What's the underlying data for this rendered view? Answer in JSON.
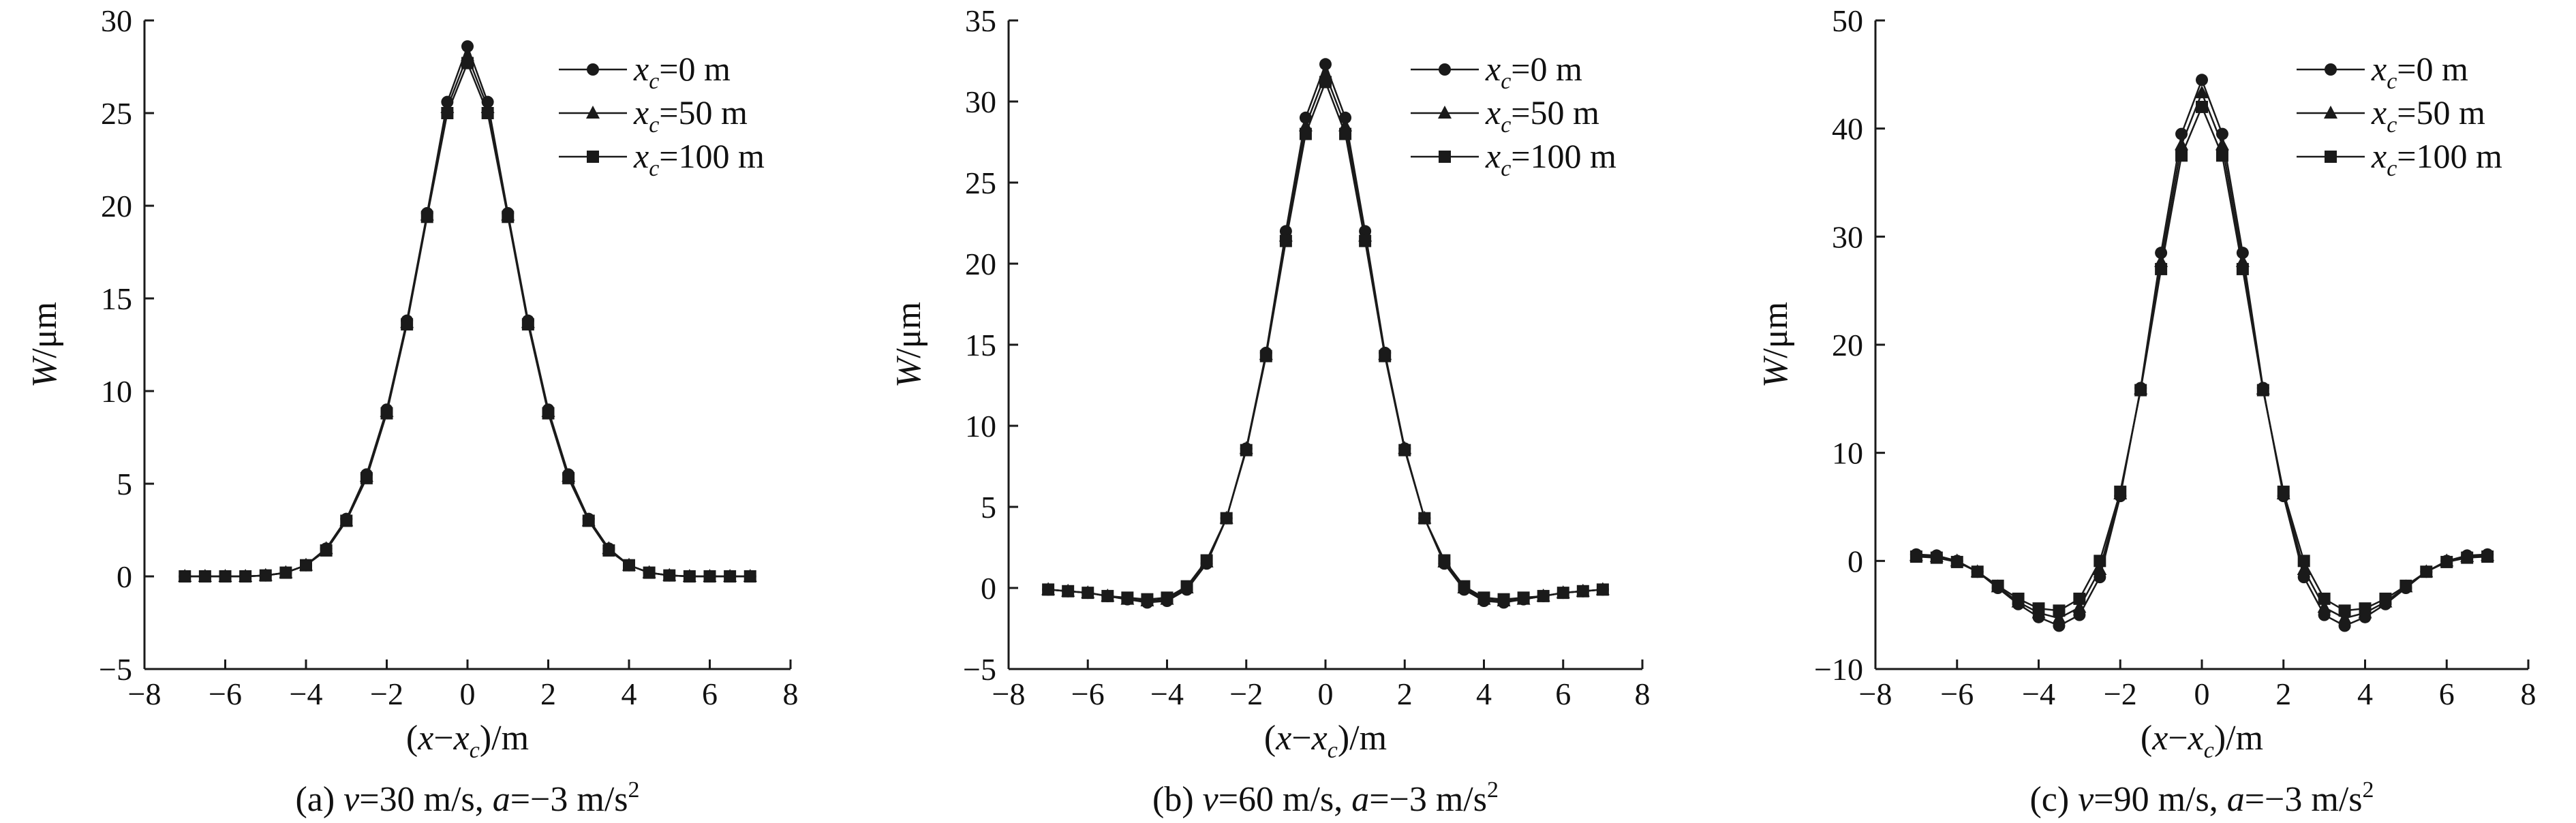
{
  "colors": {
    "line": "#1a1a1a",
    "background": "#ffffff"
  },
  "chart_data": [
    {
      "type": "line",
      "caption": "(a) v=30 m/s, a=−3 m/s²",
      "caption_parts": {
        "label": "(a) ",
        "v_sym": "v",
        "v_val": "=30 m/s, ",
        "a_sym": "a",
        "a_val": "=−3 m/s",
        "sup": "2"
      },
      "xlabel": "(x−x_c)/m",
      "ylabel": "W/μm",
      "xlim": [
        -8,
        8
      ],
      "ylim": [
        -5,
        30
      ],
      "xticks": [
        -8,
        -6,
        -4,
        -2,
        0,
        2,
        4,
        6,
        8
      ],
      "yticks": [
        -5,
        0,
        5,
        10,
        15,
        20,
        25,
        30
      ],
      "xticklabels": [
        "−8",
        "−6",
        "−4",
        "−2",
        "0",
        "2",
        "4",
        "6",
        "8"
      ],
      "yticklabels": [
        "−5",
        "0",
        "5",
        "10",
        "15",
        "20",
        "25",
        "30"
      ],
      "grid": false,
      "legend": "top-right",
      "x": [
        -7,
        -6.5,
        -6,
        -5.5,
        -5,
        -4.5,
        -4,
        -3.5,
        -3,
        -2.5,
        -2,
        -1.5,
        -1,
        -0.5,
        0,
        0.5,
        1,
        1.5,
        2,
        2.5,
        3,
        3.5,
        4,
        4.5,
        5,
        5.5,
        6,
        6.5,
        7
      ],
      "series": [
        {
          "name": "x_c=0 m",
          "marker": "circle",
          "values": [
            0,
            0,
            0,
            0,
            0.05,
            0.2,
            0.6,
            1.5,
            3.1,
            5.5,
            9.0,
            13.8,
            19.6,
            25.6,
            28.6,
            25.6,
            19.6,
            13.8,
            9.0,
            5.5,
            3.1,
            1.5,
            0.6,
            0.2,
            0.05,
            0,
            0,
            0,
            0
          ]
        },
        {
          "name": "x_c=50 m",
          "marker": "triangle",
          "values": [
            0,
            0,
            0,
            0,
            0.05,
            0.2,
            0.6,
            1.5,
            3.0,
            5.4,
            8.9,
            13.7,
            19.5,
            25.3,
            28.1,
            25.3,
            19.5,
            13.7,
            8.9,
            5.4,
            3.0,
            1.5,
            0.6,
            0.2,
            0.05,
            0,
            0,
            0,
            0
          ]
        },
        {
          "name": "x_c=100 m",
          "marker": "square",
          "values": [
            0,
            0,
            0,
            0,
            0.05,
            0.2,
            0.6,
            1.4,
            3.0,
            5.3,
            8.8,
            13.6,
            19.4,
            25.0,
            27.7,
            25.0,
            19.4,
            13.6,
            8.8,
            5.3,
            3.0,
            1.4,
            0.6,
            0.2,
            0.05,
            0,
            0,
            0,
            0
          ]
        }
      ]
    },
    {
      "type": "line",
      "caption": "(b) v=60 m/s, a=−3 m/s²",
      "caption_parts": {
        "label": "(b) ",
        "v_sym": "v",
        "v_val": "=60 m/s, ",
        "a_sym": "a",
        "a_val": "=−3 m/s",
        "sup": "2"
      },
      "xlabel": "(x−x_c)/m",
      "ylabel": "W/μm",
      "xlim": [
        -8,
        8
      ],
      "ylim": [
        -5,
        35
      ],
      "xticks": [
        -8,
        -6,
        -4,
        -2,
        0,
        2,
        4,
        6,
        8
      ],
      "yticks": [
        -5,
        0,
        5,
        10,
        15,
        20,
        25,
        30,
        35
      ],
      "xticklabels": [
        "−8",
        "−6",
        "−4",
        "−2",
        "0",
        "2",
        "4",
        "6",
        "8"
      ],
      "yticklabels": [
        "−5",
        "0",
        "5",
        "10",
        "15",
        "20",
        "25",
        "30",
        "35"
      ],
      "grid": false,
      "legend": "top-right",
      "x": [
        -7,
        -6.5,
        -6,
        -5.5,
        -5,
        -4.5,
        -4,
        -3.5,
        -3,
        -2.5,
        -2,
        -1.5,
        -1,
        -0.5,
        0,
        0.5,
        1,
        1.5,
        2,
        2.5,
        3,
        3.5,
        4,
        4.5,
        5,
        5.5,
        6,
        6.5,
        7
      ],
      "series": [
        {
          "name": "x_c=0 m",
          "marker": "circle",
          "values": [
            -0.1,
            -0.2,
            -0.3,
            -0.5,
            -0.7,
            -0.9,
            -0.8,
            -0.1,
            1.5,
            4.3,
            8.6,
            14.5,
            22.0,
            29.0,
            32.3,
            29.0,
            22.0,
            14.5,
            8.6,
            4.3,
            1.5,
            -0.1,
            -0.8,
            -0.9,
            -0.7,
            -0.5,
            -0.3,
            -0.2,
            -0.1
          ]
        },
        {
          "name": "x_c=50 m",
          "marker": "triangle",
          "values": [
            -0.1,
            -0.2,
            -0.3,
            -0.5,
            -0.7,
            -0.8,
            -0.7,
            0,
            1.6,
            4.3,
            8.6,
            14.4,
            21.7,
            28.5,
            31.7,
            28.5,
            21.7,
            14.4,
            8.6,
            4.3,
            1.6,
            0,
            -0.7,
            -0.8,
            -0.7,
            -0.5,
            -0.3,
            -0.2,
            -0.1
          ]
        },
        {
          "name": "x_c=100 m",
          "marker": "square",
          "values": [
            -0.1,
            -0.2,
            -0.3,
            -0.5,
            -0.6,
            -0.7,
            -0.6,
            0.1,
            1.7,
            4.3,
            8.5,
            14.3,
            21.4,
            28.0,
            31.2,
            28.0,
            21.4,
            14.3,
            8.5,
            4.3,
            1.7,
            0.1,
            -0.6,
            -0.7,
            -0.6,
            -0.5,
            -0.3,
            -0.2,
            -0.1
          ]
        }
      ]
    },
    {
      "type": "line",
      "caption": "(c) v=90 m/s, a=−3 m/s²",
      "caption_parts": {
        "label": "(c) ",
        "v_sym": "v",
        "v_val": "=90 m/s, ",
        "a_sym": "a",
        "a_val": "=−3 m/s",
        "sup": "2"
      },
      "xlabel": "(x−x_c)/m",
      "ylabel": "W/μm",
      "xlim": [
        -8,
        8
      ],
      "ylim": [
        -10,
        50
      ],
      "xticks": [
        -8,
        -6,
        -4,
        -2,
        0,
        2,
        4,
        6,
        8
      ],
      "yticks": [
        -10,
        0,
        10,
        20,
        30,
        40,
        50
      ],
      "xticklabels": [
        "−8",
        "−6",
        "−4",
        "−2",
        "0",
        "2",
        "4",
        "6",
        "8"
      ],
      "yticklabels": [
        "−10",
        "0",
        "10",
        "20",
        "30",
        "40",
        "50"
      ],
      "grid": false,
      "legend": "top-right",
      "x": [
        -7,
        -6.5,
        -6,
        -5.5,
        -5,
        -4.5,
        -4,
        -3.5,
        -3,
        -2.5,
        -2,
        -1.5,
        -1,
        -0.5,
        0,
        0.5,
        1,
        1.5,
        2,
        2.5,
        3,
        3.5,
        4,
        4.5,
        5,
        5.5,
        6,
        6.5,
        7
      ],
      "series": [
        {
          "name": "x_c=0 m",
          "marker": "circle",
          "values": [
            0.6,
            0.5,
            0,
            -1,
            -2.5,
            -4,
            -5.2,
            -6,
            -5,
            -1.5,
            6,
            16,
            28.5,
            39.5,
            44.5,
            39.5,
            28.5,
            16,
            6,
            -1.5,
            -5,
            -6,
            -5.2,
            -4,
            -2.5,
            -1,
            0,
            0.5,
            0.6
          ]
        },
        {
          "name": "x_c=50 m",
          "marker": "triangle",
          "values": [
            0.5,
            0.4,
            0,
            -1,
            -2.4,
            -3.8,
            -4.8,
            -5.3,
            -4.3,
            -0.8,
            6.2,
            15.9,
            27.7,
            38.5,
            43.3,
            38.5,
            27.7,
            15.9,
            6.2,
            -0.8,
            -4.3,
            -5.3,
            -4.8,
            -3.8,
            -2.4,
            -1,
            0,
            0.4,
            0.5
          ]
        },
        {
          "name": "x_c=100 m",
          "marker": "square",
          "values": [
            0.4,
            0.3,
            -0.1,
            -1,
            -2.3,
            -3.5,
            -4.4,
            -4.6,
            -3.5,
            0,
            6.4,
            15.8,
            27,
            37.5,
            42,
            37.5,
            27,
            15.8,
            6.4,
            0,
            -3.5,
            -4.6,
            -4.4,
            -3.5,
            -2.3,
            -1,
            -0.1,
            0.3,
            0.4
          ]
        }
      ]
    }
  ]
}
